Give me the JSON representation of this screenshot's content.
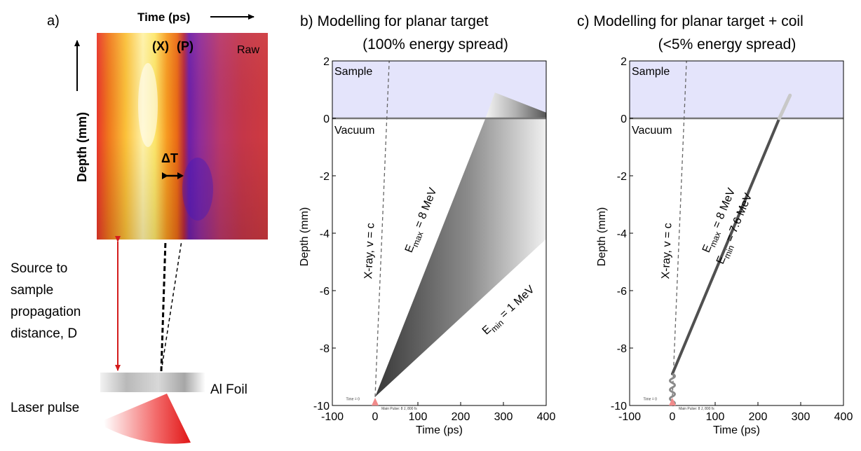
{
  "panel_a": {
    "label": "a)",
    "time_label": "Time (ps)",
    "depth_label": "Depth (mm)",
    "x_marker": "(X)",
    "p_marker": "(P)",
    "raw_label": "Raw",
    "delta_t": "ΔT",
    "source_text": [
      "Source to",
      "sample",
      "propagation",
      "distance, D"
    ],
    "foil_label": "Al Foil",
    "laser_label": "Laser pulse"
  },
  "chart_data": [
    {
      "type": "area",
      "title": "b)  Modelling for planar target",
      "subtitle": "(100% energy spread)",
      "xlabel": "Time (ps)",
      "ylabel": "Depth (mm)",
      "xlim": [
        -100,
        400
      ],
      "ylim": [
        -10,
        2
      ],
      "xticks": [
        -100,
        0,
        100,
        200,
        300,
        400
      ],
      "yticks": [
        -10,
        -8,
        -6,
        -4,
        -2,
        0,
        2
      ],
      "region_labels": {
        "upper": "Sample",
        "lower": "Vacuum"
      },
      "xray_label": "X-ray, v = c",
      "emax_label": {
        "prefix": "E",
        "sub": "max",
        "text": " = 8 MeV"
      },
      "emin_label": {
        "prefix": "E",
        "sub": "min",
        "text": " = 1 MeV"
      },
      "small_labels": {
        "time0": "Time = 0",
        "main_pulse": "Main Pulse:  8 J, 800 fs"
      },
      "xray_line": [
        [
          0,
          -9.7
        ],
        [
          33,
          2
        ]
      ],
      "fan_vertices": [
        [
          0,
          -9.7
        ],
        [
          258,
          0
        ],
        [
          400,
          0
        ],
        [
          400,
          -4.2
        ]
      ],
      "sample_wedge": [
        [
          258,
          0
        ],
        [
          280,
          0.9
        ],
        [
          400,
          0.2
        ],
        [
          400,
          0
        ]
      ],
      "colors": {
        "sample": "#e4e4fb",
        "fan_dark": "#333333",
        "fan_light": "#f2f2f2",
        "axis_line": "#777777"
      }
    },
    {
      "type": "area",
      "title": "c) Modelling for planar target + coil",
      "subtitle": "(<5% energy spread)",
      "xlabel": "Time (ps)",
      "ylabel": "Depth (mm)",
      "xlim": [
        -100,
        400
      ],
      "ylim": [
        -10,
        2
      ],
      "xticks": [
        -100,
        0,
        100,
        200,
        300,
        400
      ],
      "yticks": [
        -10,
        -8,
        -6,
        -4,
        -2,
        0,
        2
      ],
      "region_labels": {
        "upper": "Sample",
        "lower": "Vacuum"
      },
      "xray_label": "X-ray, v = c",
      "emax_label": {
        "prefix": "E",
        "sub": "max",
        "text": " = 8 MeV"
      },
      "emin_label": {
        "prefix": "E",
        "sub": "min",
        "text": " = 7.6 MeV"
      },
      "small_labels": {
        "time0": "Time = 0",
        "main_pulse": "Main Pulse:  8 J, 800 fs"
      },
      "xray_line": [
        [
          0,
          -9.7
        ],
        [
          33,
          2
        ]
      ],
      "beam_line": [
        [
          0,
          -8.9
        ],
        [
          250,
          0
        ]
      ],
      "beam_tail": [
        [
          250,
          0
        ],
        [
          275,
          0.8
        ]
      ],
      "coil_range": [
        -10,
        -8.9
      ],
      "colors": {
        "sample": "#e4e4fb",
        "beam": "#505050",
        "axis_line": "#777777"
      }
    }
  ]
}
